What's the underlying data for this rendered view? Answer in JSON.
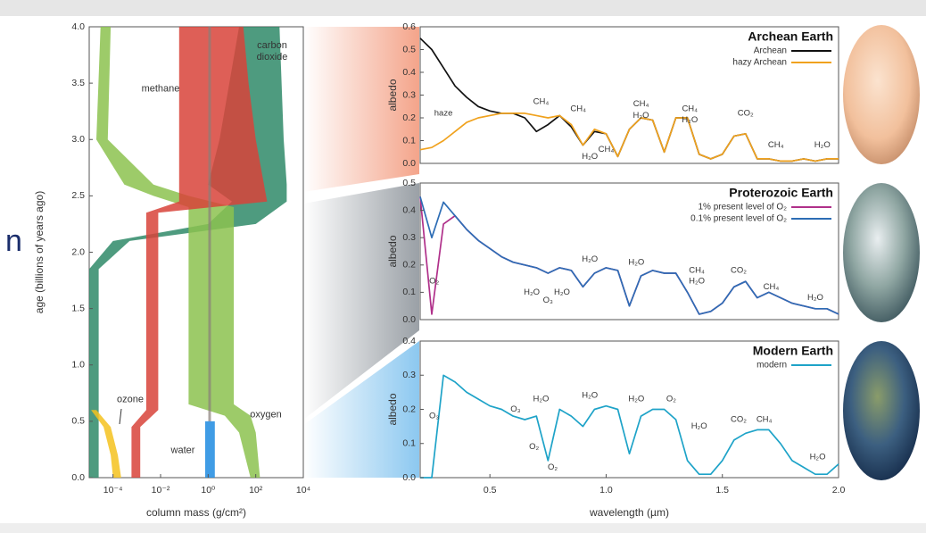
{
  "edge_text": "n",
  "chart_data": [
    {
      "type": "band",
      "xlabel": "column mass (g/cm²)",
      "ylabel": "age (billions of years ago)",
      "xscale": "log",
      "xlim": [
        1e-05,
        10000
      ],
      "ylim": [
        0,
        4
      ],
      "xticks": [
        {
          "value": 0.0001,
          "label": "10⁻⁴"
        },
        {
          "value": 0.01,
          "label": "10⁻²"
        },
        {
          "value": 1,
          "label": "10⁰"
        },
        {
          "value": 100,
          "label": "10²"
        },
        {
          "value": 10000,
          "label": "10⁴"
        }
      ],
      "yticks": [
        {
          "value": 0,
          "label": "0.0"
        },
        {
          "value": 0.5,
          "label": "0.5"
        },
        {
          "value": 1,
          "label": "1.0"
        },
        {
          "value": 1.5,
          "label": "1.5"
        },
        {
          "value": 2,
          "label": "2.0"
        },
        {
          "value": 2.5,
          "label": "2.5"
        },
        {
          "value": 3,
          "label": "3.0"
        },
        {
          "value": 3.5,
          "label": "3.5"
        },
        {
          "value": 4,
          "label": "4.0"
        }
      ],
      "series": [
        {
          "name": "carbon dioxide",
          "color": "#2f8a68",
          "age": [
            0,
            1.85,
            2.1,
            2.25,
            2.45,
            2.6,
            3.0,
            4.0
          ],
          "low": [
            1e-05,
            1e-05,
            0.0001,
            1,
            10,
            1,
            3,
            20
          ],
          "high": [
            2.5e-05,
            2.5e-05,
            0.0005,
            100,
            2000,
            2000,
            1500,
            1000
          ]
        },
        {
          "name": "oxygen",
          "color": "#8cc24f",
          "age": [
            0,
            0.4,
            0.55,
            0.65,
            2.4,
            2.5,
            2.6,
            3.0,
            4.0
          ],
          "low": [
            60,
            20,
            5,
            0.15,
            0.15,
            0.005,
            0.0003,
            2e-05,
            3e-05
          ],
          "high": [
            150,
            100,
            60,
            12,
            12,
            0.15,
            0.005,
            6e-05,
            8e-05
          ]
        },
        {
          "name": "methane",
          "color": "#d8433a",
          "age": [
            0,
            0.45,
            0.6,
            2.35,
            2.45,
            3.0,
            3.5,
            4.0
          ],
          "low": [
            0.0006,
            0.0006,
            0.0025,
            0.0025,
            0.06,
            0.06,
            0.06,
            0.06
          ],
          "high": [
            0.0014,
            0.0014,
            0.008,
            0.008,
            300,
            100,
            50,
            30
          ]
        },
        {
          "name": "water",
          "color": "#1e8be0",
          "age": [
            0,
            0.5
          ],
          "low": [
            0.75,
            0.75
          ],
          "high": [
            1.9,
            1.9
          ]
        },
        {
          "name": "ozone",
          "color": "#f4c21f",
          "age": [
            0,
            0.2,
            0.45,
            0.6
          ],
          "low": [
            0.0001,
            8e-05,
            4e-05,
            1.2e-05
          ],
          "high": [
            0.00022,
            0.00016,
            8e-05,
            2e-05
          ]
        }
      ]
    },
    {
      "type": "line",
      "title": "Archean Earth",
      "ylabel": "albedo",
      "legend": "upper right",
      "xlim": [
        0.2,
        2.0
      ],
      "ylim": [
        0,
        0.6
      ],
      "yticks": [
        {
          "value": 0,
          "label": "0.0"
        },
        0.1,
        0.2,
        0.3,
        0.4,
        0.5,
        0.6
      ],
      "x": [
        0.2,
        0.25,
        0.3,
        0.35,
        0.4,
        0.45,
        0.5,
        0.55,
        0.6,
        0.65,
        0.7,
        0.75,
        0.8,
        0.85,
        0.9,
        0.95,
        1.0,
        1.05,
        1.1,
        1.15,
        1.2,
        1.25,
        1.3,
        1.35,
        1.4,
        1.45,
        1.5,
        1.55,
        1.6,
        1.65,
        1.7,
        1.75,
        1.8,
        1.85,
        1.9,
        1.95,
        2.0
      ],
      "series": [
        {
          "name": "Archean",
          "color": "#111111",
          "values": [
            0.55,
            0.5,
            0.42,
            0.34,
            0.29,
            0.25,
            0.23,
            0.22,
            0.22,
            0.2,
            0.14,
            0.17,
            0.21,
            0.16,
            0.08,
            0.14,
            0.13,
            0.03,
            0.15,
            0.2,
            0.19,
            0.05,
            0.2,
            0.2,
            0.04,
            0.02,
            0.04,
            0.12,
            0.13,
            0.02,
            0.02,
            0.01,
            0.01,
            0.02,
            0.01,
            0.02,
            0.02
          ]
        },
        {
          "name": "hazy Archean",
          "color": "#f0a21e",
          "values": [
            0.06,
            0.07,
            0.1,
            0.14,
            0.18,
            0.2,
            0.21,
            0.22,
            0.22,
            0.22,
            0.21,
            0.2,
            0.21,
            0.17,
            0.08,
            0.15,
            0.13,
            0.03,
            0.15,
            0.2,
            0.19,
            0.05,
            0.2,
            0.2,
            0.04,
            0.02,
            0.04,
            0.12,
            0.13,
            0.02,
            0.02,
            0.01,
            0.01,
            0.02,
            0.01,
            0.02,
            0.02
          ]
        }
      ],
      "annotations": [
        {
          "text": "haze",
          "x": 0.3,
          "y": 0.22
        },
        {
          "text": "CH₄",
          "x": 0.72,
          "y": 0.27
        },
        {
          "text": "CH₄",
          "x": 0.88,
          "y": 0.24
        },
        {
          "text": "H₂O",
          "x": 0.93,
          "y": 0.03
        },
        {
          "text": "CH₄",
          "x": 1.0,
          "y": 0.06
        },
        {
          "text": "CH₄",
          "x": 1.15,
          "y": 0.26
        },
        {
          "text": "H₂O",
          "x": 1.15,
          "y": 0.21
        },
        {
          "text": "CH₄",
          "x": 1.36,
          "y": 0.24
        },
        {
          "text": "H₂O",
          "x": 1.36,
          "y": 0.19
        },
        {
          "text": "CO₂",
          "x": 1.6,
          "y": 0.22
        },
        {
          "text": "CH₄",
          "x": 1.73,
          "y": 0.08
        },
        {
          "text": "H₂O",
          "x": 1.93,
          "y": 0.08
        }
      ]
    },
    {
      "type": "line",
      "title": "Proterozoic Earth",
      "ylabel": "albedo",
      "legend": "upper right",
      "xlim": [
        0.2,
        2.0
      ],
      "ylim": [
        0,
        0.5
      ],
      "yticks": [
        {
          "value": 0,
          "label": "0.0"
        },
        0.1,
        0.2,
        0.3,
        0.4,
        0.5
      ],
      "x": [
        0.2,
        0.25,
        0.3,
        0.35,
        0.4,
        0.45,
        0.5,
        0.55,
        0.6,
        0.65,
        0.7,
        0.75,
        0.8,
        0.85,
        0.9,
        0.95,
        1.0,
        1.05,
        1.1,
        1.15,
        1.2,
        1.25,
        1.3,
        1.35,
        1.4,
        1.45,
        1.5,
        1.55,
        1.6,
        1.65,
        1.7,
        1.75,
        1.8,
        1.85,
        1.9,
        1.95,
        2.0
      ],
      "series": [
        {
          "name": "1% present level of O₂",
          "color": "#b0308a",
          "values": [
            0.45,
            0.02,
            0.35,
            0.38,
            0.33,
            0.29,
            0.26,
            0.23,
            0.21,
            0.2,
            0.19,
            0.17,
            0.19,
            0.18,
            0.12,
            0.17,
            0.19,
            0.18,
            0.05,
            0.16,
            0.18,
            0.17,
            0.17,
            0.1,
            0.02,
            0.03,
            0.06,
            0.12,
            0.14,
            0.08,
            0.1,
            0.08,
            0.06,
            0.05,
            0.04,
            0.04,
            0.02
          ]
        },
        {
          "name": "0.1% present level of O₂",
          "color": "#2d6db5",
          "values": [
            0.45,
            0.3,
            0.43,
            0.38,
            0.33,
            0.29,
            0.26,
            0.23,
            0.21,
            0.2,
            0.19,
            0.17,
            0.19,
            0.18,
            0.12,
            0.17,
            0.19,
            0.18,
            0.05,
            0.16,
            0.18,
            0.17,
            0.17,
            0.1,
            0.02,
            0.03,
            0.06,
            0.12,
            0.14,
            0.08,
            0.1,
            0.08,
            0.06,
            0.05,
            0.04,
            0.04,
            0.02
          ]
        }
      ],
      "annotations": [
        {
          "text": "O₂",
          "x": 0.26,
          "y": 0.14
        },
        {
          "text": "H₂O",
          "x": 0.68,
          "y": 0.1
        },
        {
          "text": "O₃",
          "x": 0.75,
          "y": 0.07
        },
        {
          "text": "H₂O",
          "x": 0.81,
          "y": 0.1
        },
        {
          "text": "H₂O",
          "x": 0.93,
          "y": 0.22
        },
        {
          "text": "H₂O",
          "x": 1.13,
          "y": 0.21
        },
        {
          "text": "CH₄",
          "x": 1.39,
          "y": 0.18
        },
        {
          "text": "H₂O",
          "x": 1.39,
          "y": 0.14
        },
        {
          "text": "CO₂",
          "x": 1.57,
          "y": 0.18
        },
        {
          "text": "CH₄",
          "x": 1.71,
          "y": 0.12
        },
        {
          "text": "H₂O",
          "x": 1.9,
          "y": 0.08
        }
      ]
    },
    {
      "type": "line",
      "title": "Modern Earth",
      "ylabel": "albedo",
      "xlabel": "wavelength (µm)",
      "legend": "upper right",
      "xlim": [
        0.2,
        2.0
      ],
      "ylim": [
        0,
        0.4
      ],
      "xticks": [
        0.5,
        {
          "value": 1,
          "label": "1.0"
        },
        1.5,
        {
          "value": 2,
          "label": "2.0"
        }
      ],
      "yticks": [
        {
          "value": 0,
          "label": "0.0"
        },
        0.1,
        0.2,
        0.3,
        0.4
      ],
      "x": [
        0.2,
        0.25,
        0.3,
        0.35,
        0.4,
        0.45,
        0.5,
        0.55,
        0.6,
        0.65,
        0.7,
        0.75,
        0.8,
        0.85,
        0.9,
        0.95,
        1.0,
        1.05,
        1.1,
        1.15,
        1.2,
        1.25,
        1.3,
        1.35,
        1.4,
        1.45,
        1.5,
        1.55,
        1.6,
        1.65,
        1.7,
        1.75,
        1.8,
        1.85,
        1.9,
        1.95,
        2.0
      ],
      "series": [
        {
          "name": "modern",
          "color": "#1ea3c8",
          "values": [
            0.0,
            0.0,
            0.3,
            0.28,
            0.25,
            0.23,
            0.21,
            0.2,
            0.18,
            0.17,
            0.18,
            0.05,
            0.2,
            0.18,
            0.15,
            0.2,
            0.21,
            0.2,
            0.07,
            0.18,
            0.2,
            0.2,
            0.17,
            0.05,
            0.01,
            0.01,
            0.05,
            0.11,
            0.13,
            0.14,
            0.14,
            0.1,
            0.05,
            0.03,
            0.01,
            0.01,
            0.04
          ]
        }
      ],
      "annotations": [
        {
          "text": "O₃",
          "x": 0.26,
          "y": 0.18
        },
        {
          "text": "O₃",
          "x": 0.61,
          "y": 0.2
        },
        {
          "text": "H₂O",
          "x": 0.72,
          "y": 0.23
        },
        {
          "text": "O₂",
          "x": 0.69,
          "y": 0.09
        },
        {
          "text": "O₂",
          "x": 0.77,
          "y": 0.03
        },
        {
          "text": "H₂O",
          "x": 0.93,
          "y": 0.24
        },
        {
          "text": "H₂O",
          "x": 1.13,
          "y": 0.23
        },
        {
          "text": "O₂",
          "x": 1.28,
          "y": 0.23
        },
        {
          "text": "H₂O",
          "x": 1.4,
          "y": 0.15
        },
        {
          "text": "CO₂",
          "x": 1.57,
          "y": 0.17
        },
        {
          "text": "CH₄",
          "x": 1.68,
          "y": 0.17
        },
        {
          "text": "H₂O",
          "x": 1.91,
          "y": 0.06
        }
      ]
    }
  ]
}
